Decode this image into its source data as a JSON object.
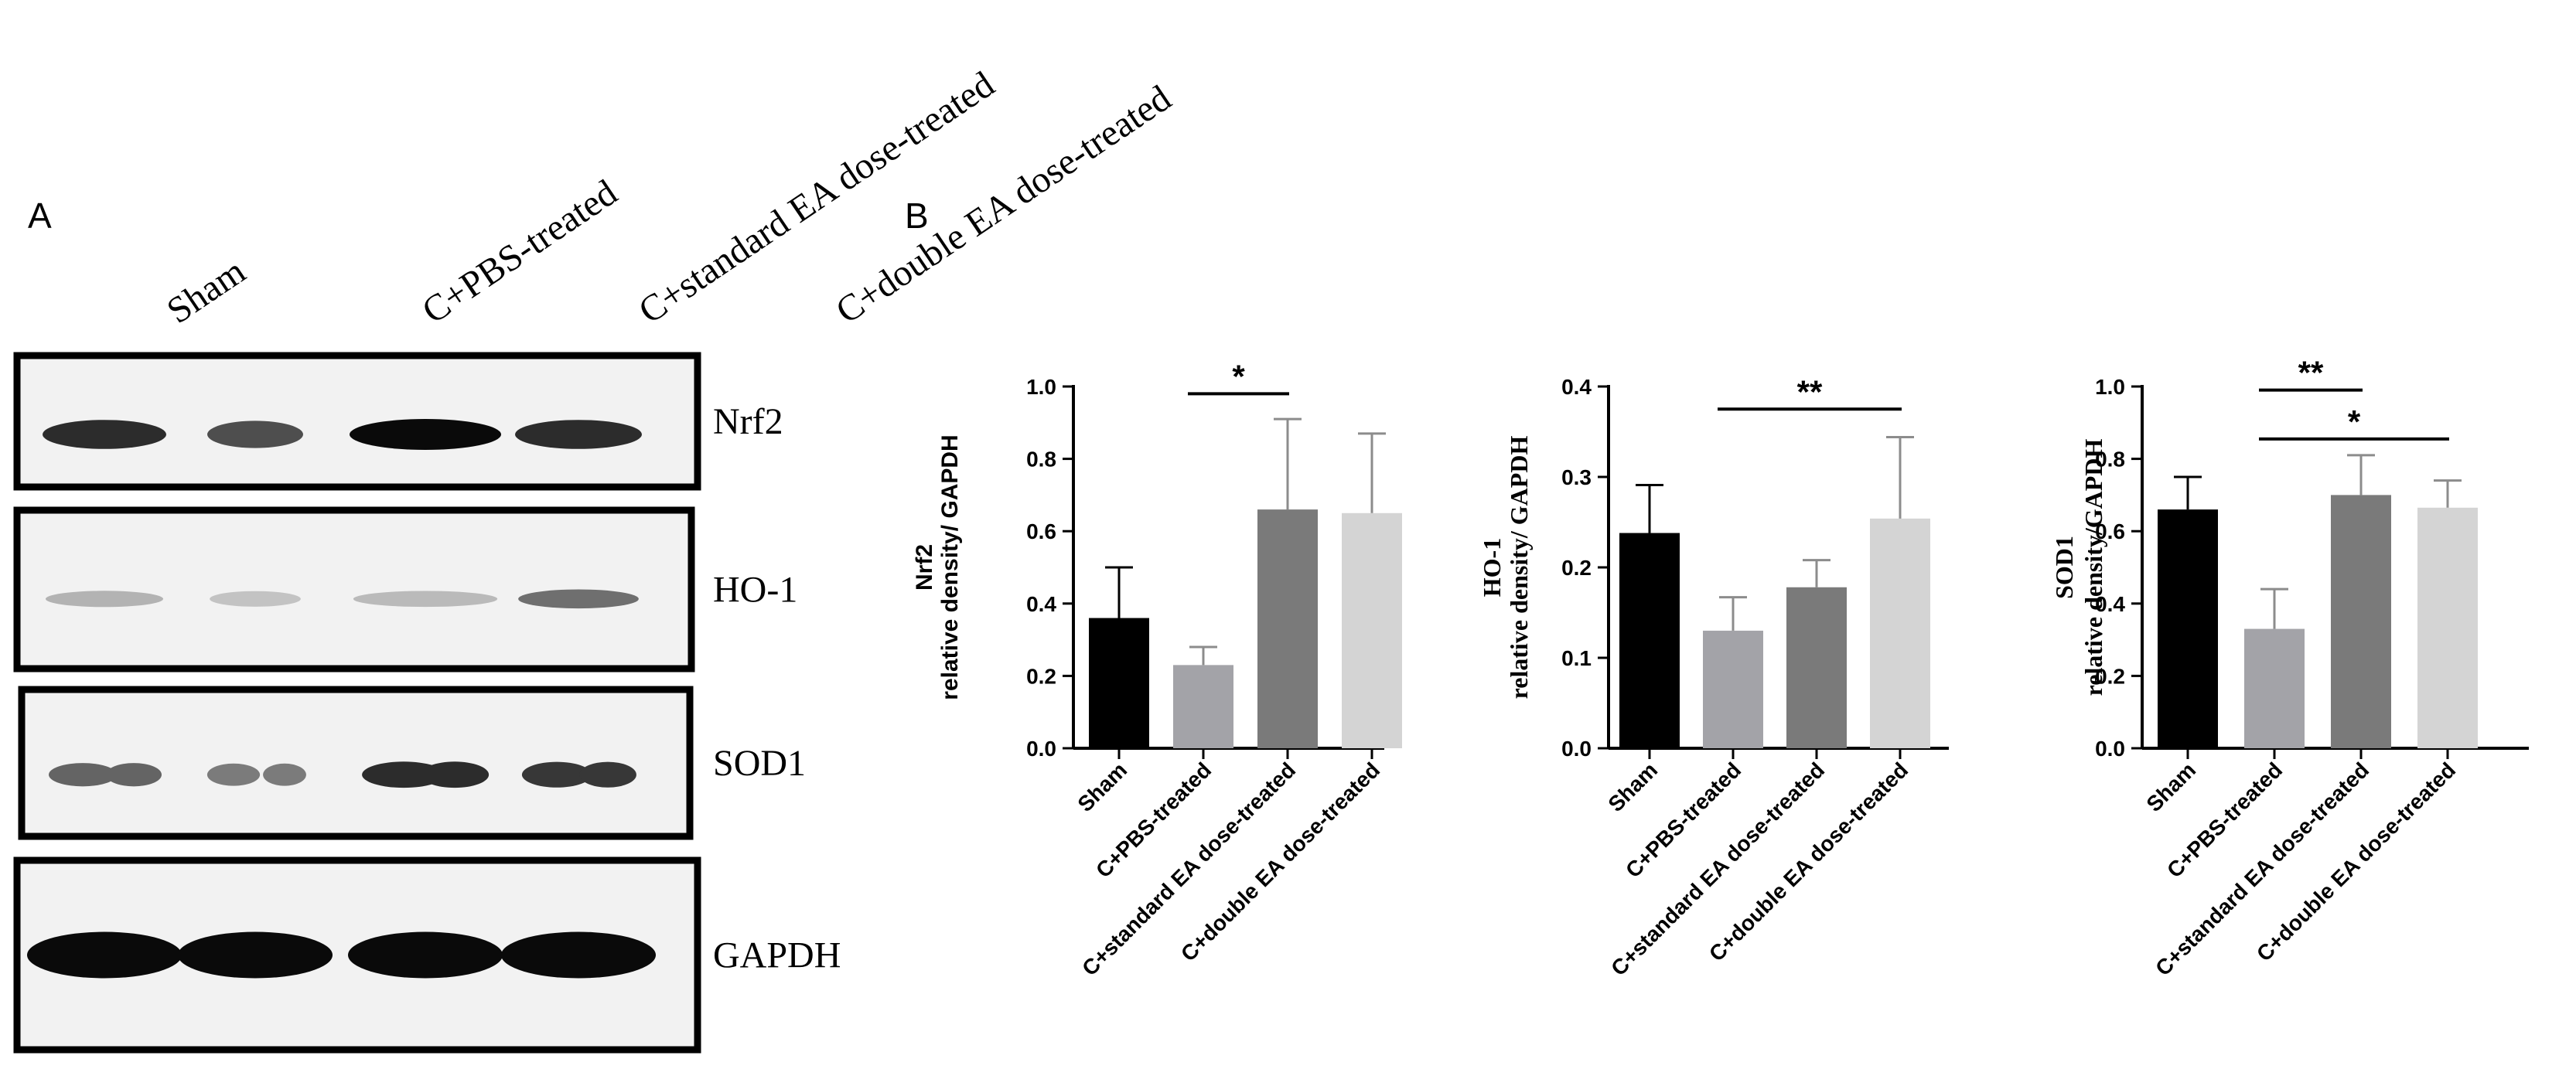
{
  "panel_a": {
    "letter": "A",
    "lanes": [
      "Sham",
      "C+PBS-treated",
      "C+standard EA dose-treated",
      "C+double EA dose-treated"
    ],
    "blots": [
      {
        "protein": "Nrf2",
        "intensity": [
          0.85,
          0.7,
          1.0,
          0.85
        ],
        "double_band": false
      },
      {
        "protein": "HO-1",
        "intensity": [
          0.25,
          0.18,
          0.22,
          0.55
        ],
        "double_band": false
      },
      {
        "protein": "SOD1",
        "intensity": [
          0.6,
          0.5,
          0.85,
          0.8
        ],
        "double_band": true
      },
      {
        "protein": "GAPDH",
        "intensity": [
          1.0,
          1.0,
          1.0,
          1.0
        ],
        "double_band": false
      }
    ]
  },
  "panel_b": {
    "letter": "B"
  },
  "colors": {
    "bar_colors": [
      "#000000",
      "#a3a3a8",
      "#7a7a7a",
      "#d4d4d4"
    ],
    "axis": "#000000"
  },
  "chart_data": [
    {
      "type": "bar",
      "title": "",
      "ylabel_line1": "Nrf2",
      "ylabel_line2": "relative density/ GAPDH",
      "ylim": [
        0,
        1.0
      ],
      "yticks": [
        "0.0",
        "0.2",
        "0.4",
        "0.6",
        "0.8",
        "1.0"
      ],
      "ytick_values": [
        0,
        0.2,
        0.4,
        0.6,
        0.8,
        1.0
      ],
      "categories": [
        "Sham",
        "C+PBS-treated",
        "C+standard EA dose-treated",
        "C+double EA dose-treated"
      ],
      "values": [
        0.36,
        0.23,
        0.66,
        0.65
      ],
      "errors": [
        0.14,
        0.05,
        0.25,
        0.22
      ],
      "significance": [
        {
          "from": 1,
          "to": 2,
          "label": "*",
          "y": 0.98
        }
      ]
    },
    {
      "type": "bar",
      "title": "",
      "ylabel_line1": "HO-1",
      "ylabel_line2": "relative density/ GAPDH",
      "ylim": [
        0,
        0.4
      ],
      "yticks": [
        "0.0",
        "0.1",
        "0.2",
        "0.3",
        "0.4"
      ],
      "ytick_values": [
        0,
        0.1,
        0.2,
        0.3,
        0.4
      ],
      "categories": [
        "Sham",
        "C+PBS-treated",
        "C+standard EA dose-treated",
        "C+double EA dose-treated"
      ],
      "values": [
        0.238,
        0.13,
        0.178,
        0.254
      ],
      "errors": [
        0.053,
        0.037,
        0.03,
        0.09
      ],
      "significance": [
        {
          "from": 1,
          "to": 3,
          "label": "**",
          "y": 0.375
        }
      ]
    },
    {
      "type": "bar",
      "title": "",
      "ylabel_line1": "SOD1",
      "ylabel_line2": "relative density/GAPDH",
      "ylim": [
        0,
        1.0
      ],
      "yticks": [
        "0.0",
        "0.2",
        "0.4",
        "0.6",
        "0.8",
        "1.0"
      ],
      "ytick_values": [
        0,
        0.2,
        0.4,
        0.6,
        0.8,
        1.0
      ],
      "categories": [
        "Sham",
        "C+PBS-treated",
        "C+standard EA dose-treated",
        "C+double EA dose-treated"
      ],
      "values": [
        0.66,
        0.33,
        0.7,
        0.665
      ],
      "errors": [
        0.09,
        0.11,
        0.11,
        0.075
      ],
      "significance": [
        {
          "from": 1,
          "to": 2,
          "label": "**",
          "y": 0.99
        },
        {
          "from": 1,
          "to": 3,
          "label": "*",
          "y": 0.855
        }
      ]
    }
  ]
}
